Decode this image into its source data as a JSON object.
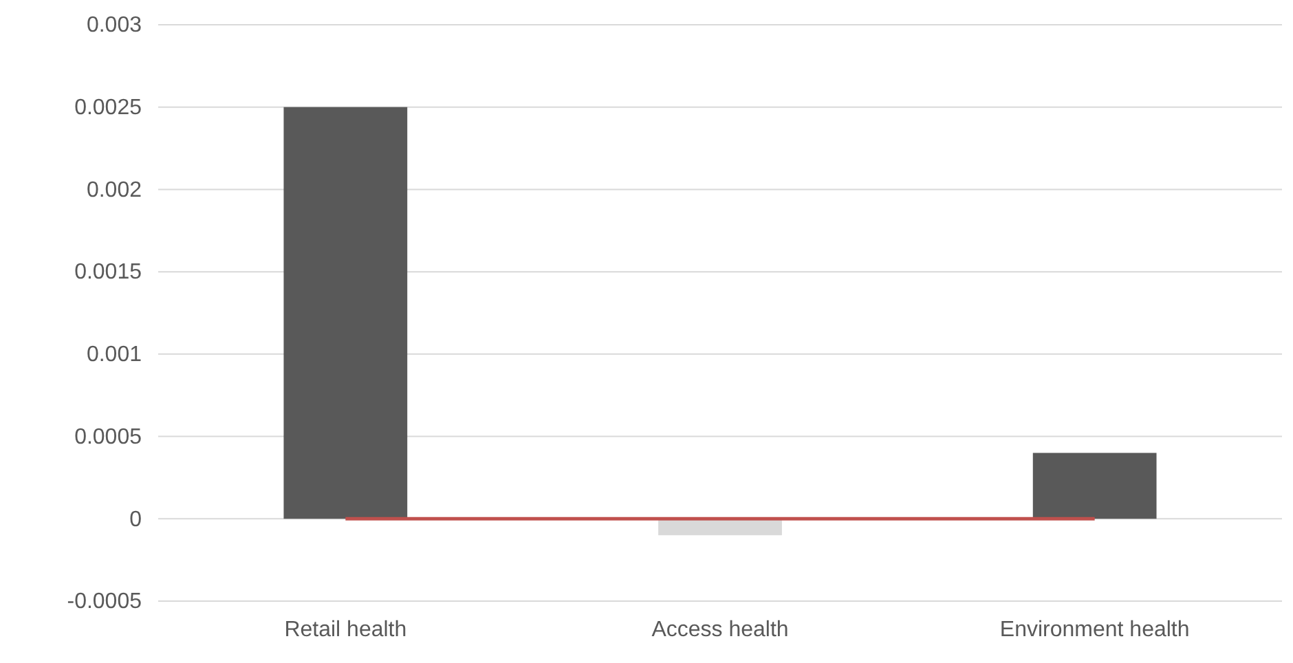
{
  "chart_data": {
    "type": "bar",
    "categories": [
      "Retail health",
      "Access health",
      "Environment health"
    ],
    "series": [
      {
        "type": "bar",
        "colors": [
          "#595959",
          "#d9d9d9",
          "#595959"
        ],
        "values": [
          0.0025,
          -0.0001,
          0.0004
        ]
      },
      {
        "type": "line",
        "color": "#c0504d",
        "values": [
          0,
          0,
          0
        ]
      }
    ],
    "ylim": [
      -0.0005,
      0.003
    ],
    "yticks": [
      -0.0005,
      0,
      0.0005,
      0.001,
      0.0015,
      0.002,
      0.0025,
      0.003
    ],
    "grid": true
  }
}
